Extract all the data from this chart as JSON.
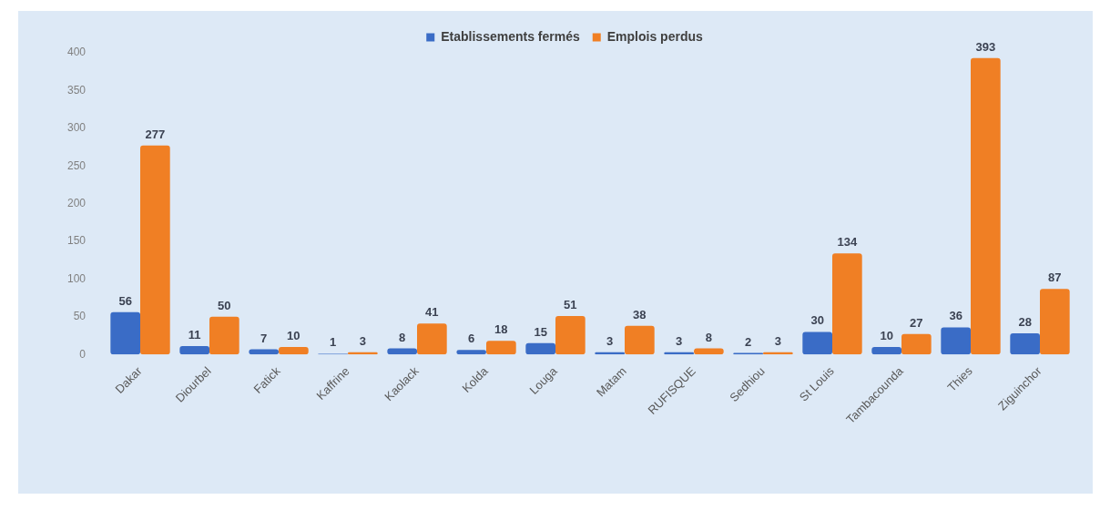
{
  "chart_data": {
    "type": "bar",
    "categories": [
      "Dakar",
      "Diourbel",
      "Fatick",
      "Kaffrine",
      "Kaolack",
      "Kolda",
      "Louga",
      "Matam",
      "RUFISQUE",
      "Sedhiou",
      "St Louis",
      "Tambacounda",
      "Thies",
      "Ziguinchor"
    ],
    "series": [
      {
        "name": "Etablissements fermés",
        "color": "#3a6cc6",
        "values": [
          56,
          11,
          7,
          1,
          8,
          6,
          15,
          3,
          3,
          2,
          30,
          10,
          36,
          28
        ]
      },
      {
        "name": "Emplois perdus",
        "color": "#f07f24",
        "values": [
          277,
          50,
          10,
          3,
          41,
          18,
          51,
          38,
          8,
          3,
          134,
          27,
          393,
          87
        ]
      }
    ],
    "ylim": [
      0,
      400
    ],
    "yticks": [
      0,
      50,
      100,
      150,
      200,
      250,
      300,
      350,
      400
    ],
    "data_labels": true,
    "legend": "top"
  }
}
